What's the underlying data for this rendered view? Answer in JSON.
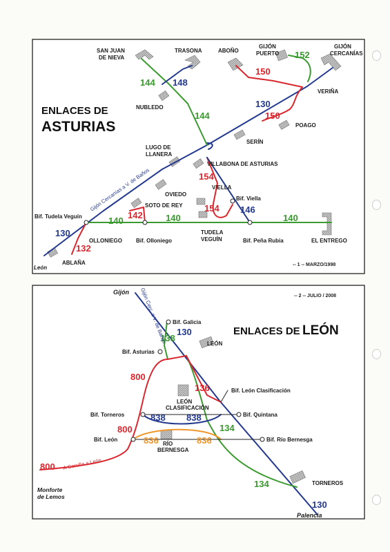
{
  "colors": {
    "blue": "#23388f",
    "green": "#3a9a2f",
    "red": "#d9272e",
    "orange": "#f0962a",
    "station": "#9a9a9a"
  },
  "map1": {
    "title_line1": "ENLACES DE",
    "title_line2": "ASTURIAS",
    "footer": "-- 1 --  MARZO/1998",
    "corner_label": "León",
    "route_label": "Gijón Cercanías a V. de Baños",
    "places": {
      "san_juan_1": "SAN JUAN",
      "san_juan_2": "DE NIEVA",
      "trasona": "TRASONA",
      "abono": "ABOÑO",
      "gijon_puerto_1": "GIJÓN",
      "gijon_puerto_2": "PUERTO",
      "gijon_cerc_1": "GIJÓN",
      "gijon_cerc_2": "CERCANÍAS",
      "verina": "VERIÑA",
      "nubledo": "NUBLEDO",
      "poago": "POAGO",
      "serin": "SERÍN",
      "lugo_1": "LUGO DE",
      "lugo_2": "LLANERA",
      "villabona": "VILLABONA DE ASTURIAS",
      "viella": "VIELLA",
      "oviedo": "OVIEDO",
      "bif_viella": "Bif. Viella",
      "soto_de_rey": "SOTO DE REY",
      "bif_tudela": "Bif. Tudela Veguín",
      "olloniego": "OLLONIEGO",
      "bif_olloniego": "Bif. Olloniego",
      "tudela_1": "TUDELA",
      "tudela_2": "VEGUÍN",
      "bif_pena": "Bif. Peña Rubia",
      "el_entrego": "EL ENTREGO",
      "ablana": "ABLAÑA"
    },
    "lines": {
      "l144a": "144",
      "l148": "148",
      "l152": "152",
      "l150a": "150",
      "l130a": "130",
      "l150b": "150",
      "l144b": "144",
      "l154a": "154",
      "l154b": "154",
      "l146": "146",
      "l142": "142",
      "l140a": "140",
      "l140b": "140",
      "l140c": "140",
      "l130b": "130",
      "l132": "132"
    }
  },
  "map2": {
    "title_small": "ENLACES DE",
    "title_big": "LEÓN",
    "footer": "-- 2 --  JULIO / 2008",
    "route_label": "Gijón Cerc. a V. de Baños",
    "route_label_2": "A Coruña a León",
    "places": {
      "gijon": "Gijón",
      "bif_galicia": "Bif. Galicia",
      "leon": "LEÓN",
      "bif_asturias": "Bif. Asturias",
      "leon_clas_1": "LEÓN",
      "leon_clas_2": "CLASIFICACIÓN",
      "bif_leon_clas": "Bif. León Clasificación",
      "bif_torneros": "Bif. Torneros",
      "bif_quintana": "Bif. Quintana",
      "bif_leon": "Bif. León",
      "rio_1": "RÍO",
      "rio_2": "BERNESGA",
      "bif_rio": "Bif. Río Bernesga",
      "monforte_1": "Monforte",
      "monforte_2": "de Lemos",
      "torneros": "TORNEROS",
      "palencia": "Palencia"
    },
    "lines": {
      "l138": "138",
      "l130a": "130",
      "l800a": "800",
      "l136": "136",
      "l838a": "838",
      "l838b": "838",
      "l800b": "800",
      "l134a": "134",
      "l836a": "836",
      "l836b": "836",
      "l800c": "800",
      "l134b": "134",
      "l130b": "130"
    }
  }
}
